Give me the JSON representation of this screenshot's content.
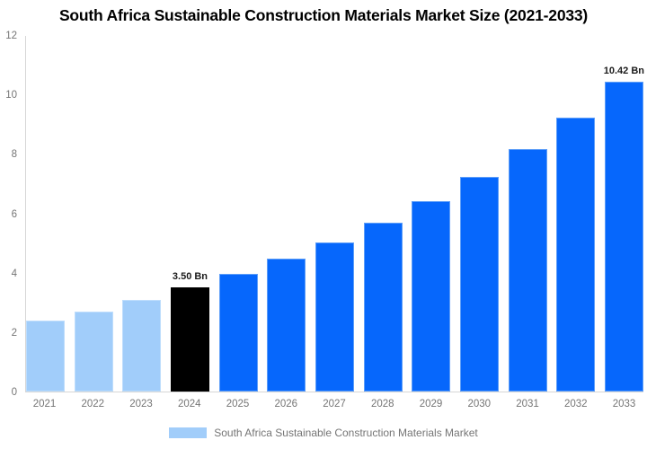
{
  "chart_data": {
    "type": "bar",
    "title": "South Africa Sustainable Construction Materials Market Size (2021-2033)",
    "legend": "South Africa Sustainable Construction Materials Market",
    "legend_position": "bottom",
    "categories": [
      "2021",
      "2022",
      "2023",
      "2024",
      "2025",
      "2026",
      "2027",
      "2028",
      "2029",
      "2030",
      "2031",
      "2032",
      "2033"
    ],
    "values": [
      2.4,
      2.7,
      3.07,
      3.5,
      3.95,
      4.46,
      5.03,
      5.68,
      6.41,
      7.24,
      8.17,
      9.22,
      10.42
    ],
    "unit": "Bn",
    "point_styles": [
      "historical",
      "historical",
      "historical",
      "current",
      "forecast",
      "forecast",
      "forecast",
      "forecast",
      "forecast",
      "forecast",
      "forecast",
      "forecast",
      "forecast"
    ],
    "colors": {
      "historical": "#A1CDFA",
      "current": "#000000",
      "forecast": "#0667FC"
    },
    "strokes": {
      "historical": "#BEDDFC",
      "current": "#000000",
      "forecast": "#5E9EF8"
    },
    "annotations": [
      {
        "category": "2024",
        "text": "3.50 Bn"
      },
      {
        "category": "2033",
        "text": "10.42 Bn"
      }
    ],
    "xlabel": "",
    "ylabel": "",
    "ylim": [
      0,
      12
    ],
    "yticks": [
      0,
      2,
      4,
      6,
      8,
      10,
      12
    ],
    "grid": false,
    "axis_color": "#D6D6D6",
    "tick_label_color": "#757575",
    "annotation_color": "#1a1a1a"
  }
}
